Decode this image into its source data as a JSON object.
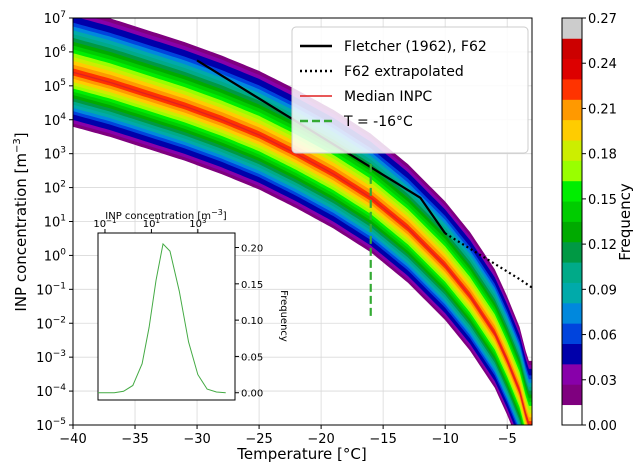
{
  "chart_data": {
    "main": {
      "type": "heatmap",
      "title": "",
      "xlabel": "Temperature [°C]",
      "ylabel": "INP concentration [m",
      "ylabel_sup": "−3",
      "ylabel_tail": "]",
      "xlim": [
        -40,
        -3
      ],
      "ylim_log10": [
        -5,
        7
      ],
      "y_scale": "log",
      "grid": true,
      "x_ticks": [
        -40,
        -35,
        -30,
        -25,
        -20,
        -15,
        -10,
        -5
      ],
      "x_tick_labels": [
        "−40",
        "−35",
        "−30",
        "−25",
        "−20",
        "−15",
        "−10",
        "−5"
      ],
      "y_ticks_log10": [
        -5,
        -4,
        -3,
        -2,
        -1,
        0,
        1,
        2,
        3,
        4,
        5,
        6,
        7
      ],
      "median_curve": {
        "temperature": [
          -40,
          -37,
          -34,
          -31,
          -28,
          -25,
          -22,
          -19,
          -16,
          -13,
          -10,
          -8,
          -6,
          -5,
          -4,
          -3.3
        ],
        "log10_inpc": [
          5.4,
          5.1,
          4.75,
          4.4,
          4.0,
          3.55,
          3.0,
          2.4,
          1.7,
          0.8,
          -0.3,
          -1.2,
          -2.3,
          -3.1,
          -4.0,
          -5.0
        ]
      },
      "band_half_width_log10": 1.8,
      "fletcher_f62": {
        "temperature": [
          -30,
          -28,
          -26,
          -24,
          -22,
          -20,
          -18,
          -16,
          -14,
          -12,
          -10
        ],
        "log10_inpc": [
          5.75,
          5.3,
          4.85,
          4.4,
          3.95,
          3.5,
          3.05,
          2.6,
          2.15,
          1.7,
          0.65
        ]
      },
      "f62_extrapolated": {
        "temperature": [
          -10,
          -8,
          -6,
          -4,
          -3
        ],
        "log10_inpc": [
          0.65,
          0.2,
          -0.25,
          -0.7,
          -0.95
        ]
      },
      "vertical_line_temperature": -16,
      "vertical_line_log10_range": [
        -1.9,
        2.7
      ],
      "legend": {
        "position": "upper right",
        "entries": [
          {
            "label": "Fletcher (1962), F62",
            "color": "#000000",
            "style": "solid"
          },
          {
            "label": "F62 extrapolated",
            "color": "#000000",
            "style": "dotted"
          },
          {
            "label": "Median INPC",
            "color": "#e02020",
            "style": "solid"
          },
          {
            "label": "T = -16°C",
            "color": "#33aa33",
            "style": "dashed"
          }
        ]
      }
    },
    "inset": {
      "type": "line",
      "top_xlabel": "INP concentration [m",
      "top_xlabel_sup": "−3",
      "top_xlabel_tail": "]",
      "ylabel": "Frequency",
      "x_scale": "log",
      "xlim_log10": [
        -1.3,
        4.6
      ],
      "ylim": [
        -0.01,
        0.22
      ],
      "x_ticks_log10": [
        -1,
        1,
        3
      ],
      "y_ticks": [
        0.0,
        0.05,
        0.1,
        0.15,
        0.2
      ],
      "y_tick_labels": [
        "0.00",
        "0.05",
        "0.10",
        "0.15",
        "0.20"
      ],
      "color": "#44aa44",
      "x_log10": [
        -1.3,
        -0.6,
        -0.2,
        0.2,
        0.6,
        0.9,
        1.2,
        1.5,
        1.8,
        2.2,
        2.6,
        3.0,
        3.4,
        3.8,
        4.2
      ],
      "y": [
        0.0,
        0.0,
        0.002,
        0.01,
        0.04,
        0.09,
        0.155,
        0.205,
        0.195,
        0.14,
        0.07,
        0.025,
        0.005,
        0.001,
        0.0
      ]
    },
    "colorbar": {
      "label": "Frequency",
      "min": 0,
      "max": 0.27,
      "ticks": [
        0.0,
        0.03,
        0.06,
        0.09,
        0.12,
        0.15,
        0.18,
        0.21,
        0.24,
        0.27
      ],
      "tick_labels": [
        "0.00",
        "0.03",
        "0.06",
        "0.09",
        "0.12",
        "0.15",
        "0.18",
        "0.21",
        "0.24",
        "0.27"
      ],
      "colors": [
        "#ffffff",
        "#7f007f",
        "#8800aa",
        "#0000aa",
        "#0044dd",
        "#0088dd",
        "#00aaaa",
        "#00aa88",
        "#009944",
        "#00aa00",
        "#00cc00",
        "#00ee00",
        "#99ff00",
        "#ccee00",
        "#ffcc00",
        "#ff9900",
        "#ff3300",
        "#dd0000",
        "#cc0000",
        "#cccccc"
      ]
    }
  }
}
